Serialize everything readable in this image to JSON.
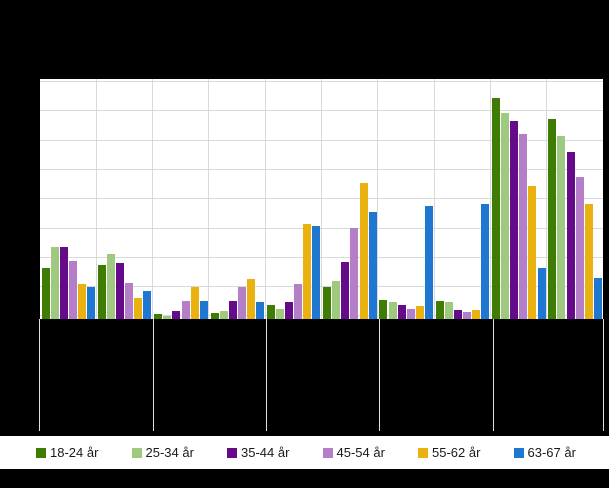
{
  "colors": {
    "background": "#000000",
    "plot_background": "#ffffff",
    "gridline": "#d9d9d9",
    "tick_line": "#e0e0e0",
    "legend_background": "#ffffff",
    "legend_text": "#1a1a1a"
  },
  "chart_data": {
    "type": "bar",
    "title": "",
    "note": "Chart title, y-axis tick labels and x-axis category labels are drawn in black on the black background and are not legible in the screenshot. Values are estimated as percent of full plot height (no visible numeric scale).",
    "categories": [
      "",
      "",
      "",
      "",
      "",
      "",
      "",
      "",
      "",
      ""
    ],
    "category_groups": 5,
    "clusters_per_group": 2,
    "xlabel": "",
    "ylabel": "",
    "unit": "percent of plot height (estimated)",
    "ylim": [
      0,
      100
    ],
    "grid": true,
    "legend_position": "bottom",
    "series": [
      {
        "name": "18-24 år",
        "color": "#3e7c04",
        "values": [
          21.2,
          22.5,
          2.1,
          2.4,
          6.0,
          13.5,
          8.0,
          7.6,
          92.2,
          83.5
        ]
      },
      {
        "name": "25-34 år",
        "color": "#9fc97e",
        "values": [
          29.9,
          27.0,
          1.3,
          3.5,
          4.3,
          15.7,
          7.0,
          7.0,
          85.7,
          76.4
        ]
      },
      {
        "name": "35-44 år",
        "color": "#650a89",
        "values": [
          30.1,
          23.2,
          3.2,
          7.4,
          7.0,
          23.9,
          5.7,
          3.8,
          82.6,
          69.7
        ]
      },
      {
        "name": "45-54 år",
        "color": "#b57ec8",
        "values": [
          24.3,
          14.9,
          7.5,
          13.2,
          14.7,
          38.0,
          4.0,
          2.8,
          77.2,
          59.3
        ]
      },
      {
        "name": "55-62 år",
        "color": "#e9b211",
        "values": [
          14.7,
          8.9,
          13.5,
          16.8,
          39.5,
          56.8,
          5.3,
          3.6,
          55.5,
          47.9
        ]
      },
      {
        "name": "63-67 år",
        "color": "#1e78d2",
        "values": [
          13.3,
          11.8,
          7.4,
          7.1,
          38.8,
          44.7,
          47.2,
          47.9,
          21.1,
          17.0
        ]
      }
    ]
  }
}
